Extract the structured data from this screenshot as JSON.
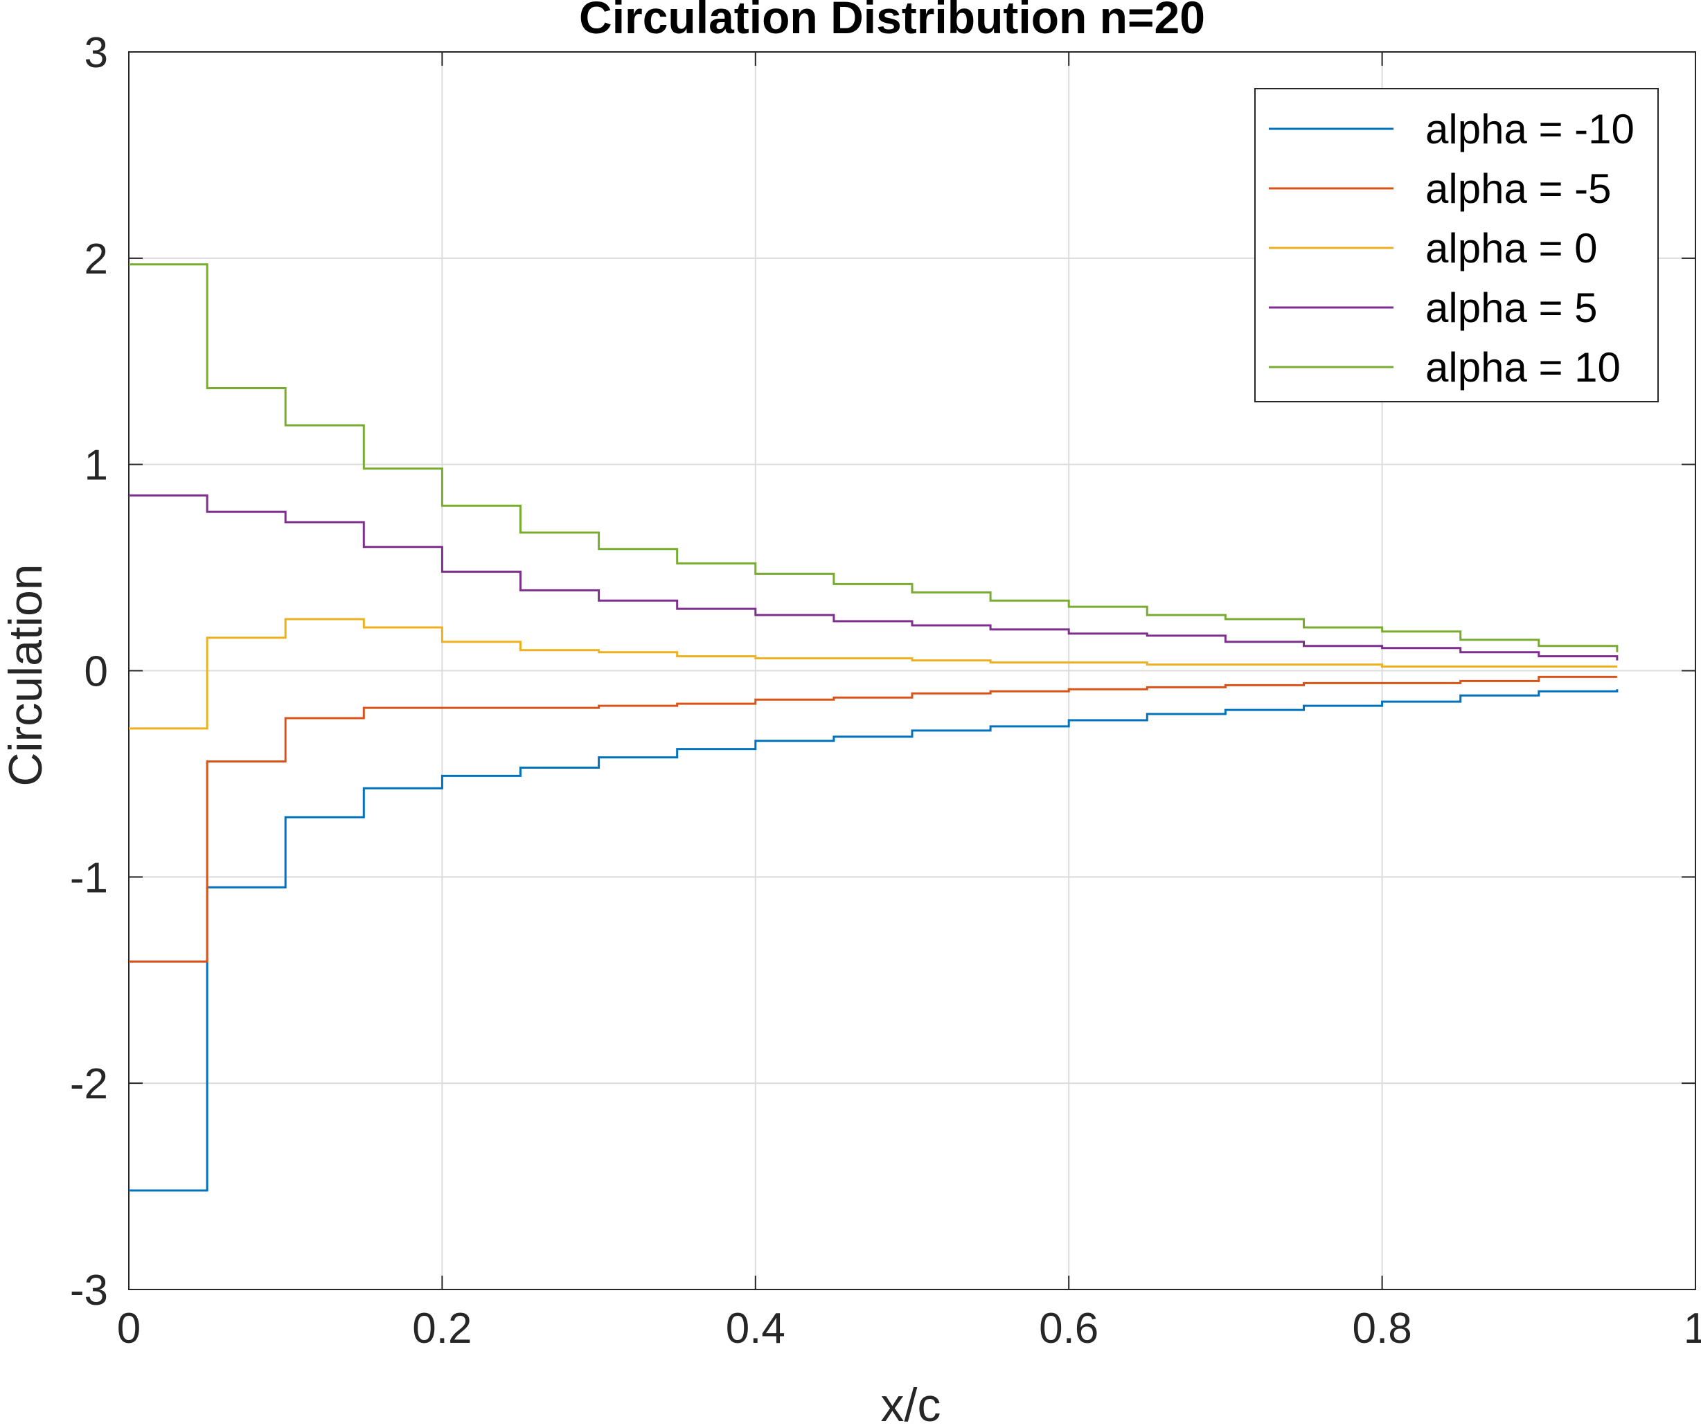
{
  "chart_data": {
    "type": "line",
    "title": "Circulation Distribution n=20",
    "xlabel": "x/c",
    "ylabel": "Circulation",
    "xlim": [
      0,
      1
    ],
    "ylim": [
      -3,
      3
    ],
    "grid": true,
    "legend_placement": "top-right",
    "xticks": [
      "0",
      "0.2",
      "0.4",
      "0.6",
      "0.8",
      "1"
    ],
    "yticks": [
      "3",
      "2",
      "1",
      "0",
      "-1",
      "-2",
      "-3"
    ],
    "step_x": [
      0,
      0.05,
      0.1,
      0.15,
      0.2,
      0.25,
      0.3,
      0.35,
      0.4,
      0.45,
      0.5,
      0.55,
      0.6,
      0.65,
      0.7,
      0.75,
      0.8,
      0.85,
      0.9,
      0.95
    ],
    "series": [
      {
        "name": "alpha = -10",
        "color": "#0072BD",
        "values": [
          -2.52,
          -1.05,
          -0.71,
          -0.57,
          -0.51,
          -0.47,
          -0.42,
          -0.38,
          -0.34,
          -0.32,
          -0.29,
          -0.27,
          -0.24,
          -0.21,
          -0.19,
          -0.17,
          -0.15,
          -0.12,
          -0.1,
          -0.09
        ]
      },
      {
        "name": "alpha = -5",
        "color": "#D95319",
        "values": [
          -1.41,
          -0.44,
          -0.23,
          -0.18,
          -0.18,
          -0.18,
          -0.17,
          -0.16,
          -0.14,
          -0.13,
          -0.11,
          -0.1,
          -0.09,
          -0.08,
          -0.07,
          -0.06,
          -0.06,
          -0.05,
          -0.03,
          -0.03
        ]
      },
      {
        "name": "alpha = 0",
        "color": "#EDB120",
        "values": [
          -0.28,
          0.16,
          0.25,
          0.21,
          0.14,
          0.1,
          0.09,
          0.07,
          0.06,
          0.06,
          0.05,
          0.04,
          0.04,
          0.03,
          0.03,
          0.03,
          0.02,
          0.02,
          0.02,
          0.02
        ]
      },
      {
        "name": "alpha = 5",
        "color": "#7E2F8E",
        "values": [
          0.85,
          0.77,
          0.72,
          0.6,
          0.48,
          0.39,
          0.34,
          0.3,
          0.27,
          0.24,
          0.22,
          0.2,
          0.18,
          0.17,
          0.14,
          0.12,
          0.11,
          0.09,
          0.07,
          0.05
        ]
      },
      {
        "name": "alpha = 10",
        "color": "#77AC30",
        "values": [
          1.97,
          1.37,
          1.19,
          0.98,
          0.8,
          0.67,
          0.59,
          0.52,
          0.47,
          0.42,
          0.38,
          0.34,
          0.31,
          0.27,
          0.25,
          0.21,
          0.19,
          0.15,
          0.12,
          0.09
        ]
      }
    ]
  }
}
